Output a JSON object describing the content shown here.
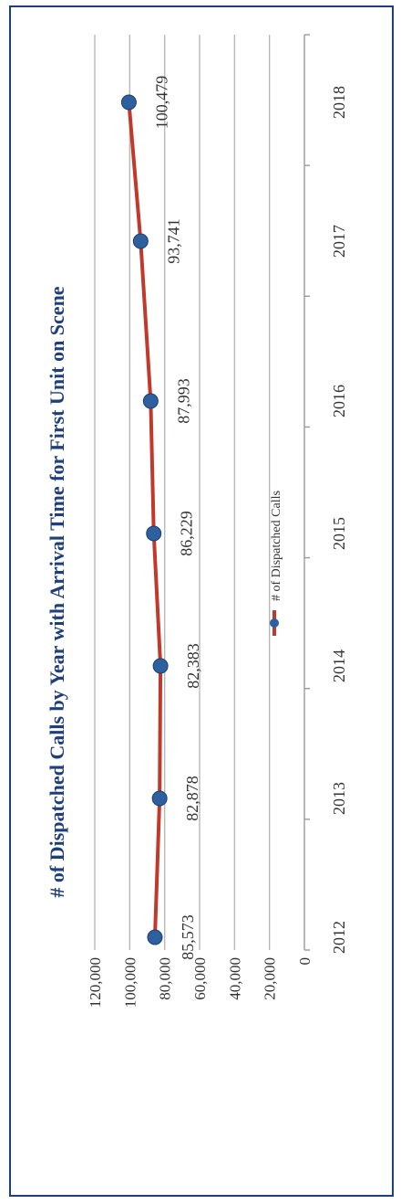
{
  "chart_data": {
    "type": "line",
    "title": "# of Dispatched Calls by Year with Arrival Time for First Unit on Scene",
    "categories": [
      "2012",
      "2013",
      "2014",
      "2015",
      "2016",
      "2017",
      "2018"
    ],
    "series": [
      {
        "name": "# of Dispatched Calls",
        "values": [
          85573,
          82878,
          82383,
          86229,
          87993,
          93741,
          100479
        ],
        "data_labels": [
          "85,573",
          "82,878",
          "82,383",
          "86,229",
          "87,993",
          "93,741",
          "100,479"
        ],
        "line_color": "#c0392b",
        "marker_color": "#2e5f9e"
      }
    ],
    "value_axis": {
      "min": 0,
      "max": 120000,
      "ticks": [
        0,
        20000,
        40000,
        60000,
        80000,
        100000,
        120000
      ],
      "tick_labels": [
        "0",
        "20,000",
        "40,000",
        "60,000",
        "80,000",
        "100,000",
        "120,000"
      ]
    },
    "gridlines": true,
    "legend_position": "bottom",
    "orientation": "rotated 90 degrees clockwise"
  },
  "colors": {
    "title": "#1f3f7a",
    "frame": "#1f3f7a",
    "text": "#333333"
  }
}
